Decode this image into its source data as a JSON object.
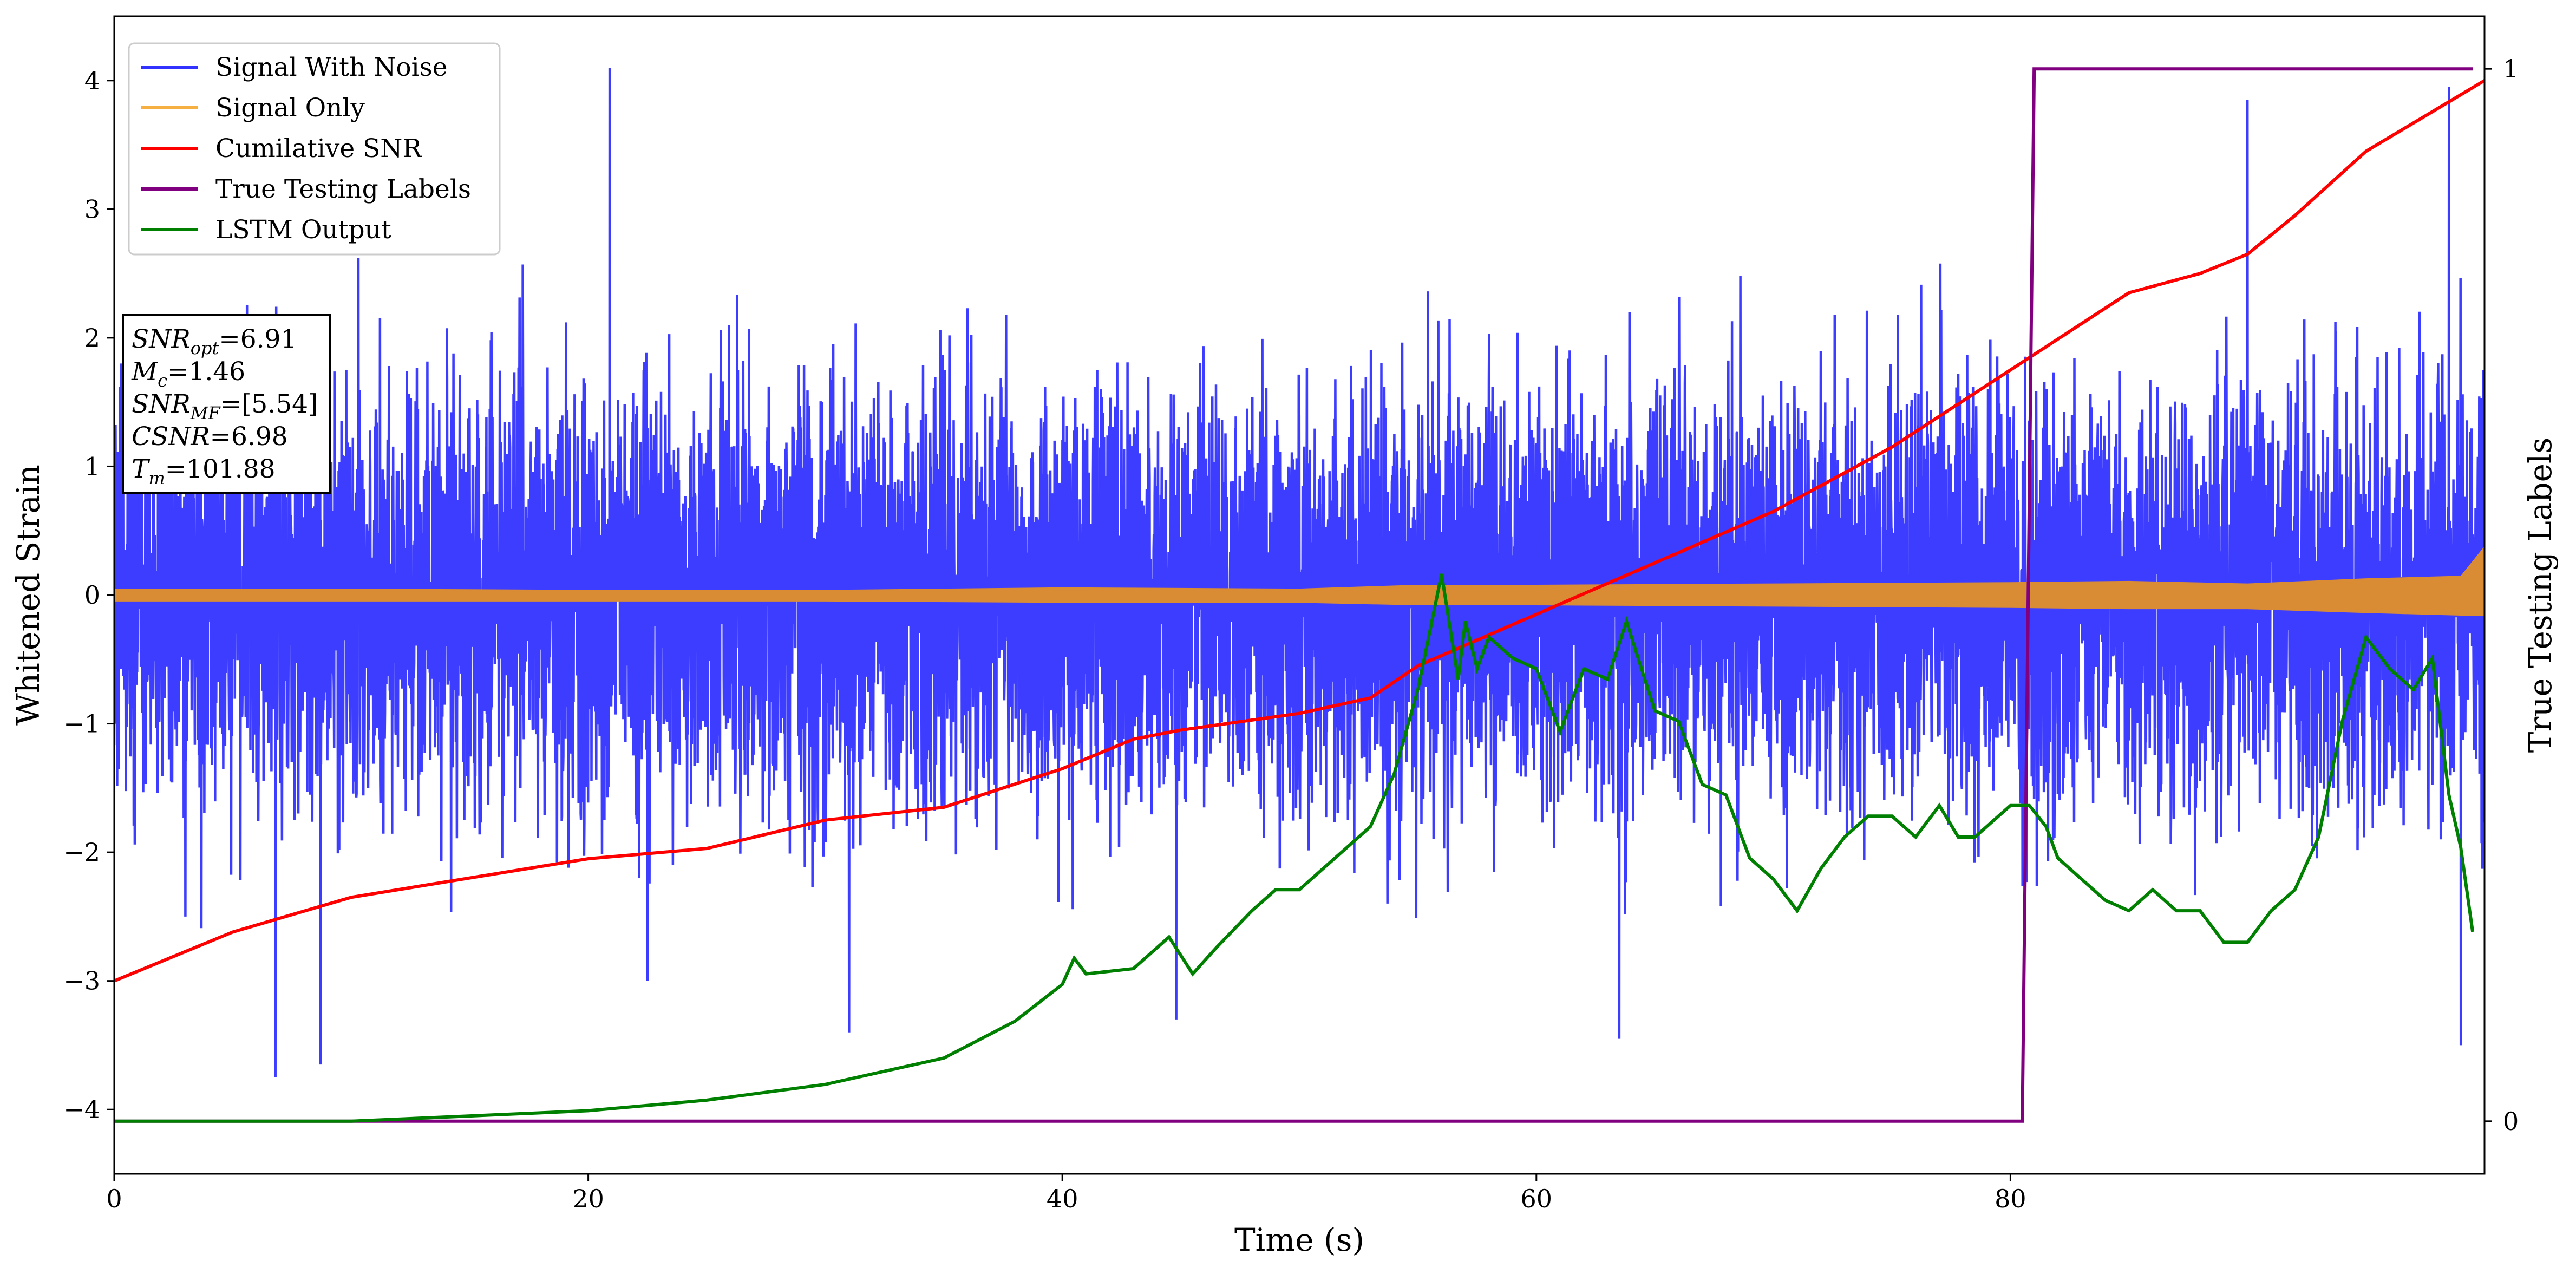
{
  "chart_data": {
    "type": "line",
    "xlabel": "Time (s)",
    "ylabel": "Whitened Strain",
    "y2label": "True Testing Labels",
    "xlim": [
      0,
      100
    ],
    "ylim": [
      -4.5,
      4.5
    ],
    "y2lim": [
      -0.05,
      1.05
    ],
    "xticks": [
      "0",
      "20",
      "40",
      "60",
      "80"
    ],
    "xtick_values": [
      0,
      20,
      40,
      60,
      80
    ],
    "yticks": [
      "4",
      "3",
      "2",
      "1",
      "0",
      "−1",
      "−2",
      "−3",
      "−4"
    ],
    "ytick_values": [
      4,
      3,
      2,
      1,
      0,
      -1,
      -2,
      -3,
      -4
    ],
    "y2ticks": [
      "1",
      "0"
    ],
    "y2tick_values": [
      1,
      0
    ],
    "legend_position": "top-left",
    "series": [
      {
        "name": "Signal With Noise",
        "color": "#3333ff",
        "axis": "left",
        "style": "dense-noise",
        "envelope_max": 4.1,
        "envelope_min": -3.75,
        "typical_amplitude": 1.2,
        "spikes": [
          [
            0.3,
            1.8
          ],
          [
            3.0,
            -2.5
          ],
          [
            6.8,
            -3.75
          ],
          [
            8.7,
            -3.65
          ],
          [
            20.9,
            4.1
          ],
          [
            22.5,
            -3.0
          ],
          [
            31.0,
            -3.4
          ],
          [
            44.8,
            -3.3
          ],
          [
            63.5,
            -3.45
          ],
          [
            90.0,
            3.85
          ],
          [
            98.5,
            3.95
          ],
          [
            99.0,
            -3.5
          ]
        ]
      },
      {
        "name": "Signal Only",
        "color": "#f5a623",
        "axis": "left",
        "style": "band",
        "x": [
          0,
          10,
          20,
          30,
          40,
          50,
          55,
          60,
          70,
          80,
          85,
          90,
          95,
          99,
          100
        ],
        "upper": [
          0.05,
          0.05,
          0.04,
          0.04,
          0.06,
          0.05,
          0.08,
          0.08,
          0.09,
          0.1,
          0.11,
          0.09,
          0.13,
          0.15,
          0.38
        ],
        "lower": [
          -0.05,
          -0.05,
          -0.05,
          -0.05,
          -0.06,
          -0.06,
          -0.08,
          -0.08,
          -0.09,
          -0.1,
          -0.11,
          -0.11,
          -0.14,
          -0.16,
          -0.16
        ]
      },
      {
        "name": "Cumilative SNR",
        "color": "#ff0000",
        "axis": "left",
        "x": [
          0,
          5,
          10,
          15,
          20,
          25,
          30,
          35,
          40,
          43,
          45,
          50,
          53,
          55,
          60,
          65,
          70,
          75,
          80,
          85,
          88,
          90,
          92,
          95,
          100
        ],
        "values": [
          -3.0,
          -2.62,
          -2.35,
          -2.2,
          -2.05,
          -1.97,
          -1.75,
          -1.65,
          -1.35,
          -1.12,
          -1.05,
          -0.92,
          -0.8,
          -0.55,
          -0.15,
          0.25,
          0.65,
          1.15,
          1.75,
          2.35,
          2.5,
          2.65,
          2.95,
          3.45,
          4.0
        ]
      },
      {
        "name": "True Testing Labels",
        "color": "#800080",
        "axis": "right",
        "x": [
          0,
          80.5,
          81.0,
          99.5
        ],
        "values": [
          0,
          0,
          1,
          1
        ]
      },
      {
        "name": "LSTM Output",
        "color": "#008000",
        "axis": "right",
        "x": [
          0,
          10,
          15,
          20,
          25,
          30,
          35,
          38,
          40,
          40.5,
          41,
          43,
          44.5,
          45.5,
          46.5,
          48,
          49,
          50,
          51,
          52,
          53,
          54,
          55,
          56,
          56.7,
          57,
          57.5,
          58,
          59,
          60,
          61,
          62,
          63,
          63.8,
          65,
          66,
          67,
          68,
          69,
          70,
          71,
          72,
          73,
          74,
          75,
          76,
          77,
          77.8,
          78.5,
          79,
          80,
          80.8,
          81.5,
          82,
          83,
          84,
          85,
          86,
          87,
          88,
          89,
          90,
          91,
          92,
          93,
          94,
          95,
          96,
          97,
          97.8,
          98.5,
          99,
          99.5
        ],
        "values": [
          0.0,
          0.0,
          0.005,
          0.01,
          0.02,
          0.035,
          0.06,
          0.095,
          0.13,
          0.155,
          0.14,
          0.145,
          0.175,
          0.14,
          0.165,
          0.2,
          0.22,
          0.22,
          0.24,
          0.26,
          0.28,
          0.33,
          0.41,
          0.52,
          0.42,
          0.475,
          0.43,
          0.46,
          0.44,
          0.43,
          0.37,
          0.43,
          0.42,
          0.475,
          0.39,
          0.38,
          0.32,
          0.31,
          0.25,
          0.23,
          0.2,
          0.24,
          0.27,
          0.29,
          0.29,
          0.27,
          0.3,
          0.27,
          0.27,
          0.28,
          0.3,
          0.3,
          0.28,
          0.25,
          0.23,
          0.21,
          0.2,
          0.22,
          0.2,
          0.2,
          0.17,
          0.17,
          0.2,
          0.22,
          0.27,
          0.38,
          0.46,
          0.43,
          0.41,
          0.44,
          0.31,
          0.26,
          0.18
        ]
      }
    ],
    "annotation_box": {
      "position": "upper-left",
      "lines": [
        {
          "base": "SNR",
          "sub": "opt",
          "value": "=6.91"
        },
        {
          "base": "M",
          "sub": "c",
          "value": "=1.46"
        },
        {
          "base": "SNR",
          "sub": "MF",
          "value": "=[5.54]"
        },
        {
          "base": "CSNR",
          "sub": "",
          "value": "=6.98"
        },
        {
          "base": "T",
          "sub": "m",
          "value": "=101.88"
        }
      ]
    }
  }
}
